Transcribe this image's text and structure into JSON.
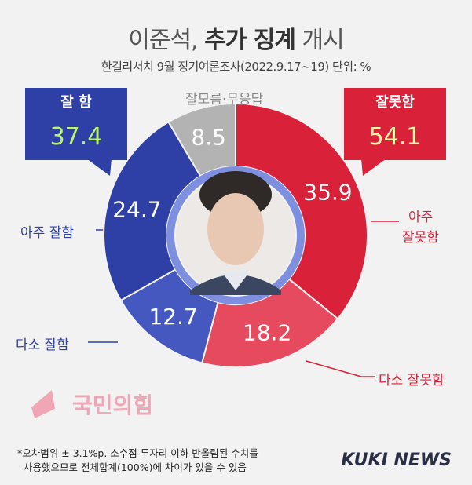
{
  "header": {
    "title_pre": "이준석,",
    "title_bold": "추가 징계",
    "title_post": "개시",
    "subtitle": "한길리서치 9월 정기여론조사(2022.9.17~19) 단위: %"
  },
  "callouts": {
    "good": {
      "label": "잘 함",
      "value": "37.4"
    },
    "bad": {
      "label": "잘못함",
      "value": "54.1"
    },
    "dk": "잘모름·무응답"
  },
  "labels": {
    "very_good": "아주 잘함",
    "some_good": "다소 잘함",
    "very_bad_1": "아주",
    "very_bad_2": "잘못함",
    "some_bad": "다소 잘못함"
  },
  "party_logo_text": "국민의힘",
  "footnote_1": "*오차범위 ± 3.1%p. 소수점 두자리 이하 반올림된 수치를",
  "footnote_2": "사용했으므로 전체합계(100%)에 차이가 있을 수 있음",
  "brand": "KUKI NEWS",
  "chart_data": {
    "type": "pie",
    "style": "donut",
    "start": "top, clockwise",
    "slices": [
      {
        "key": "very_bad",
        "label": "아주 잘못함",
        "value": 35.9,
        "color": "#d9223a"
      },
      {
        "key": "some_bad",
        "label": "다소 잘못함",
        "value": 18.2,
        "color": "#e54a5e"
      },
      {
        "key": "some_good",
        "label": "다소 잘함",
        "value": 12.7,
        "color": "#4458c0"
      },
      {
        "key": "very_good",
        "label": "아주 잘함",
        "value": 24.7,
        "color": "#2e3fa5"
      },
      {
        "key": "dk",
        "label": "잘모름·무응답",
        "value": 8.5,
        "color": "#b3b3b3"
      }
    ],
    "groups": [
      {
        "label": "잘 함",
        "value": 37.4
      },
      {
        "label": "잘못함",
        "value": 54.1
      }
    ]
  }
}
